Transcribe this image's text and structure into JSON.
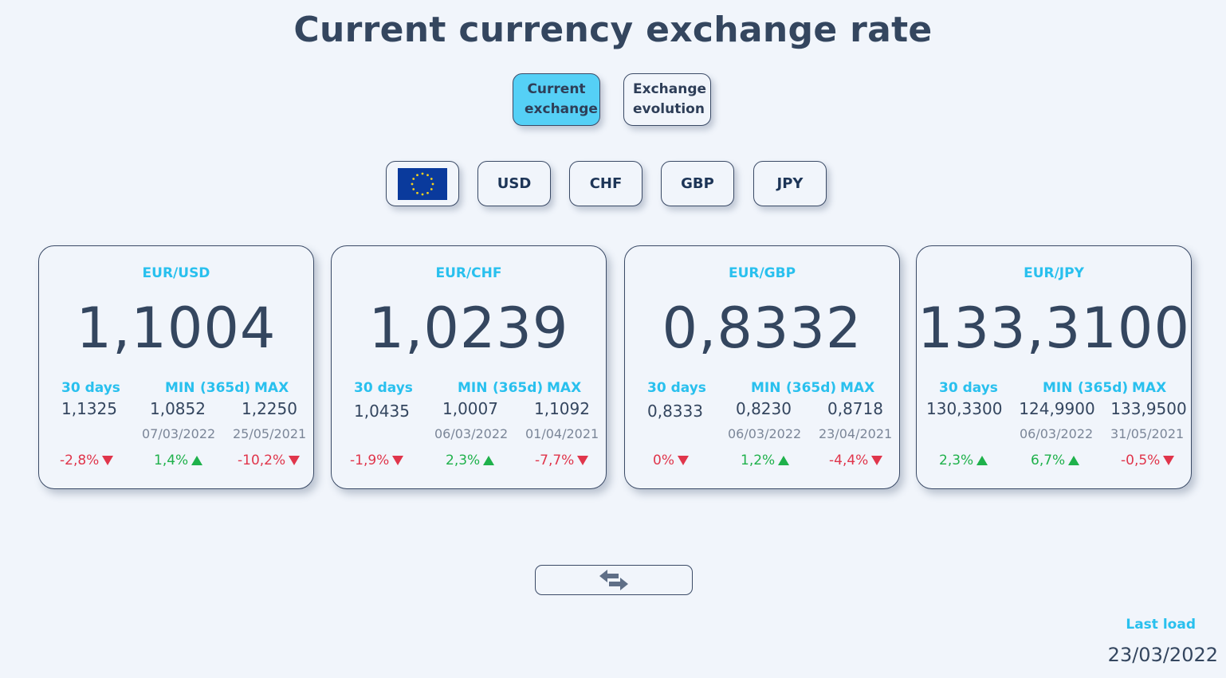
{
  "title": "Current currency exchange rate",
  "nav": {
    "current_label": "Current exchange",
    "evolution_label": "Exchange evolution"
  },
  "currency_buttons": {
    "eur_icon": "eu-flag-icon",
    "usd": "USD",
    "chf": "CHF",
    "gbp": "GBP",
    "jpy": "JPY"
  },
  "labels": {
    "days30": "30 days",
    "min": "MIN",
    "period": "(365d)",
    "max": "MAX"
  },
  "cards": [
    {
      "pair": "EUR/USD",
      "rate": "1,1004",
      "d30": "1,1325",
      "min": "1,0852",
      "max": "1,2250",
      "min_date": "07/03/2022",
      "max_date": "25/05/2021",
      "d30_chg": "-2,8%",
      "d30_dir": "down",
      "min_chg": "1,4%",
      "min_dir": "up",
      "max_chg": "-10,2%",
      "max_dir": "down"
    },
    {
      "pair": "EUR/CHF",
      "rate": "1,0239",
      "d30": "1,0435",
      "min": "1,0007",
      "max": "1,1092",
      "min_date": "06/03/2022",
      "max_date": "01/04/2021",
      "d30_chg": "-1,9%",
      "d30_dir": "down",
      "min_chg": "2,3%",
      "min_dir": "up",
      "max_chg": "-7,7%",
      "max_dir": "down"
    },
    {
      "pair": "EUR/GBP",
      "rate": "0,8332",
      "d30": "0,8333",
      "min": "0,8230",
      "max": "0,8718",
      "min_date": "06/03/2022",
      "max_date": "23/04/2021",
      "d30_chg": "0%",
      "d30_dir": "down",
      "min_chg": "1,2%",
      "min_dir": "up",
      "max_chg": "-4,4%",
      "max_dir": "down"
    },
    {
      "pair": "EUR/JPY",
      "rate": "133,3100",
      "d30": "130,3300",
      "min": "124,9900",
      "max": "133,9500",
      "min_date": "06/03/2022",
      "max_date": "31/05/2021",
      "d30_chg": "2,3%",
      "d30_dir": "up",
      "min_chg": "6,7%",
      "min_dir": "up",
      "max_chg": "-0,5%",
      "max_dir": "down"
    }
  ],
  "swap_icon": "swap-arrows-icon",
  "last_load": {
    "label": "Last load",
    "value": "23/03/2022"
  },
  "colors": {
    "accent": "#29c0ee",
    "active_button": "#55d0f6",
    "text": "#34465f",
    "negative": "#e0354b",
    "positive": "#1fb14b",
    "background": "#f1f5fb"
  }
}
